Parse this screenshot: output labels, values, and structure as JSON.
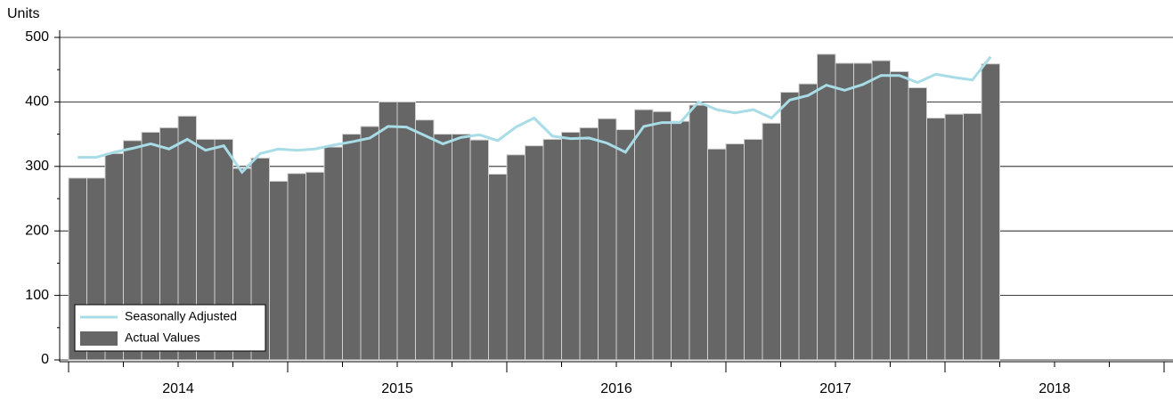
{
  "chart_data": {
    "type": "bar+line",
    "y_label": "Units",
    "categories": [
      null,
      null,
      null,
      null,
      null,
      null,
      null,
      null,
      null,
      null,
      null,
      null,
      null,
      null,
      null,
      null,
      null,
      null,
      null,
      null,
      null,
      null,
      null,
      null,
      null,
      null,
      null,
      null,
      null,
      null,
      null,
      null,
      null,
      null,
      null,
      null,
      null,
      null,
      null,
      null,
      null,
      null,
      null,
      null,
      null,
      null,
      null,
      null,
      null,
      null,
      null,
      null,
      null,
      null,
      null,
      null,
      null,
      null,
      null,
      null
    ],
    "x_groups": [
      "2014",
      "2015",
      "2016",
      "2017",
      "2018"
    ],
    "series": [
      {
        "name": "Seasonally Adjusted",
        "type": "line",
        "color": "#a8dce6",
        "values": [
          314,
          314,
          322,
          328,
          335,
          327,
          342,
          325,
          332,
          291,
          320,
          327,
          325,
          327,
          333,
          338,
          344,
          362,
          361,
          348,
          335,
          345,
          349,
          340,
          361,
          375,
          347,
          343,
          344,
          336,
          322,
          362,
          368,
          368,
          400,
          388,
          383,
          388,
          375,
          403,
          410,
          426,
          418,
          427,
          441,
          441,
          430,
          443,
          438,
          434,
          470,
          null,
          null,
          null,
          null,
          null,
          null,
          null,
          null,
          null
        ]
      },
      {
        "name": "Actual Values",
        "type": "bar",
        "color": "#666666",
        "values": [
          282,
          282,
          320,
          340,
          353,
          360,
          378,
          342,
          342,
          297,
          313,
          277,
          289,
          291,
          330,
          350,
          362,
          400,
          400,
          372,
          350,
          350,
          341,
          288,
          318,
          332,
          342,
          353,
          360,
          374,
          357,
          388,
          385,
          370,
          395,
          327,
          335,
          342,
          367,
          415,
          428,
          474,
          460,
          460,
          464,
          447,
          422,
          375,
          381,
          382,
          459,
          null,
          null,
          null,
          null,
          null,
          null,
          null,
          null,
          null
        ]
      }
    ],
    "ylim": [
      0,
      500
    ],
    "yticks": [
      0,
      100,
      200,
      300,
      400,
      500
    ],
    "grid": true,
    "legend": "lower left"
  }
}
